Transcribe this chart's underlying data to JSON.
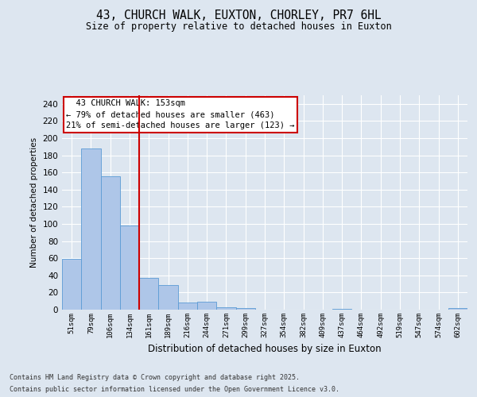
{
  "title_line1": "43, CHURCH WALK, EUXTON, CHORLEY, PR7 6HL",
  "title_line2": "Size of property relative to detached houses in Euxton",
  "xlabel": "Distribution of detached houses by size in Euxton",
  "ylabel": "Number of detached properties",
  "categories": [
    "51sqm",
    "79sqm",
    "106sqm",
    "134sqm",
    "161sqm",
    "189sqm",
    "216sqm",
    "244sqm",
    "271sqm",
    "299sqm",
    "327sqm",
    "354sqm",
    "382sqm",
    "409sqm",
    "437sqm",
    "464sqm",
    "492sqm",
    "519sqm",
    "547sqm",
    "574sqm",
    "602sqm"
  ],
  "values": [
    59,
    188,
    156,
    98,
    37,
    29,
    8,
    9,
    3,
    2,
    0,
    0,
    0,
    0,
    1,
    0,
    0,
    0,
    0,
    0,
    2
  ],
  "bar_color": "#aec6e8",
  "bar_edge_color": "#5b9bd5",
  "annotation_line1": "  43 CHURCH WALK: 153sqm",
  "annotation_line2": "← 79% of detached houses are smaller (463)",
  "annotation_line3": "21% of semi-detached houses are larger (123) →",
  "annotation_box_color": "#ffffff",
  "annotation_box_edge_color": "#cc0000",
  "red_line_color": "#cc0000",
  "red_line_x": 3.5,
  "ylim": [
    0,
    250
  ],
  "yticks": [
    0,
    20,
    40,
    60,
    80,
    100,
    120,
    140,
    160,
    180,
    200,
    220,
    240
  ],
  "background_color": "#dde6f0",
  "grid_color": "#ffffff",
  "footer_line1": "Contains HM Land Registry data © Crown copyright and database right 2025.",
  "footer_line2": "Contains public sector information licensed under the Open Government Licence v3.0."
}
